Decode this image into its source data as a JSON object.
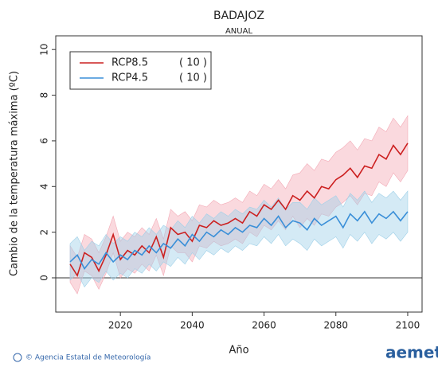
{
  "chart_data": {
    "type": "line",
    "title": "BADAJOZ",
    "subtitle": "ANUAL",
    "ylabel": "Cambio de la temperatura máxima (ºC)",
    "xlabel": "Año",
    "footer": "© Agencia Estatal de Meteorología",
    "logo": "aemet",
    "xlim": [
      2002,
      2104
    ],
    "xticks": [
      2020,
      2040,
      2060,
      2080,
      2100
    ],
    "ylim": [
      -1.5,
      10.6
    ],
    "yticks": [
      0,
      2,
      4,
      6,
      8,
      10
    ],
    "zero_line": true,
    "legend": "upper left",
    "x": [
      2006,
      2008,
      2010,
      2012,
      2014,
      2016,
      2018,
      2020,
      2022,
      2024,
      2026,
      2028,
      2030,
      2032,
      2034,
      2036,
      2038,
      2040,
      2042,
      2044,
      2046,
      2048,
      2050,
      2052,
      2054,
      2056,
      2058,
      2060,
      2062,
      2064,
      2066,
      2068,
      2070,
      2072,
      2074,
      2076,
      2078,
      2080,
      2082,
      2084,
      2086,
      2088,
      2090,
      2092,
      2094,
      2096,
      2098,
      2100
    ],
    "series": [
      {
        "name": "RCP8.5",
        "members_label": "( 10 )",
        "color": "#cc2020",
        "band_color": "#f3aab6",
        "values": [
          0.6,
          0.1,
          1.1,
          0.9,
          0.3,
          1.0,
          1.9,
          0.8,
          1.2,
          1.0,
          1.4,
          1.1,
          1.8,
          0.9,
          2.2,
          1.9,
          2.0,
          1.6,
          2.3,
          2.2,
          2.5,
          2.3,
          2.4,
          2.6,
          2.4,
          2.9,
          2.7,
          3.2,
          3.0,
          3.4,
          3.0,
          3.6,
          3.4,
          3.8,
          3.5,
          4.0,
          3.9,
          4.3,
          4.5,
          4.8,
          4.4,
          4.9,
          4.8,
          5.4,
          5.2,
          5.8,
          5.4,
          5.9
        ],
        "lower": [
          -0.2,
          -0.7,
          0.3,
          0.1,
          -0.5,
          0.2,
          1.1,
          0.0,
          0.4,
          0.2,
          0.6,
          0.3,
          1.0,
          0.1,
          1.4,
          1.1,
          1.1,
          0.7,
          1.4,
          1.3,
          1.6,
          1.4,
          1.5,
          1.7,
          1.5,
          2.0,
          1.8,
          2.3,
          2.1,
          2.5,
          2.1,
          2.7,
          2.2,
          2.6,
          2.3,
          2.8,
          2.7,
          3.1,
          3.3,
          3.6,
          3.2,
          3.7,
          3.6,
          4.2,
          4.0,
          4.6,
          4.2,
          4.7
        ],
        "upper": [
          1.4,
          0.9,
          1.9,
          1.7,
          1.1,
          1.8,
          2.7,
          1.6,
          2.0,
          1.8,
          2.2,
          1.9,
          2.6,
          1.7,
          3.0,
          2.7,
          2.9,
          2.5,
          3.2,
          3.1,
          3.4,
          3.2,
          3.3,
          3.5,
          3.3,
          3.8,
          3.6,
          4.1,
          3.9,
          4.3,
          3.9,
          4.5,
          4.6,
          5.0,
          4.7,
          5.2,
          5.1,
          5.5,
          5.7,
          6.0,
          5.6,
          6.1,
          6.0,
          6.6,
          6.4,
          7.0,
          6.6,
          7.1
        ]
      },
      {
        "name": "RCP4.5",
        "members_label": "( 10 )",
        "color": "#3a8fd8",
        "band_color": "#9fd0e8",
        "values": [
          0.7,
          1.0,
          0.4,
          0.8,
          0.6,
          1.1,
          0.7,
          1.0,
          0.8,
          1.2,
          1.0,
          1.4,
          1.1,
          1.5,
          1.3,
          1.7,
          1.4,
          1.9,
          1.6,
          2.0,
          1.8,
          2.1,
          1.9,
          2.2,
          2.0,
          2.3,
          2.2,
          2.6,
          2.3,
          2.7,
          2.2,
          2.5,
          2.4,
          2.1,
          2.6,
          2.3,
          2.5,
          2.7,
          2.2,
          2.8,
          2.5,
          2.9,
          2.4,
          2.8,
          2.6,
          2.9,
          2.5,
          2.9
        ],
        "lower": [
          -0.1,
          0.2,
          -0.4,
          0.0,
          -0.2,
          0.3,
          -0.1,
          0.2,
          0.0,
          0.4,
          0.2,
          0.6,
          0.3,
          0.7,
          0.5,
          0.9,
          0.6,
          1.1,
          0.8,
          1.2,
          1.0,
          1.3,
          1.1,
          1.4,
          1.2,
          1.5,
          1.4,
          1.8,
          1.5,
          1.9,
          1.4,
          1.7,
          1.5,
          1.2,
          1.7,
          1.4,
          1.6,
          1.8,
          1.3,
          1.9,
          1.6,
          2.0,
          1.5,
          1.9,
          1.7,
          2.0,
          1.6,
          2.0
        ],
        "upper": [
          1.5,
          1.8,
          1.2,
          1.6,
          1.4,
          1.9,
          1.5,
          1.8,
          1.6,
          2.0,
          1.8,
          2.2,
          1.9,
          2.3,
          2.1,
          2.5,
          2.2,
          2.7,
          2.4,
          2.8,
          2.6,
          2.9,
          2.7,
          3.0,
          2.8,
          3.1,
          3.0,
          3.4,
          3.1,
          3.5,
          3.0,
          3.3,
          3.3,
          3.0,
          3.5,
          3.2,
          3.4,
          3.6,
          3.1,
          3.7,
          3.4,
          3.8,
          3.3,
          3.7,
          3.5,
          3.8,
          3.4,
          3.8
        ]
      }
    ]
  }
}
